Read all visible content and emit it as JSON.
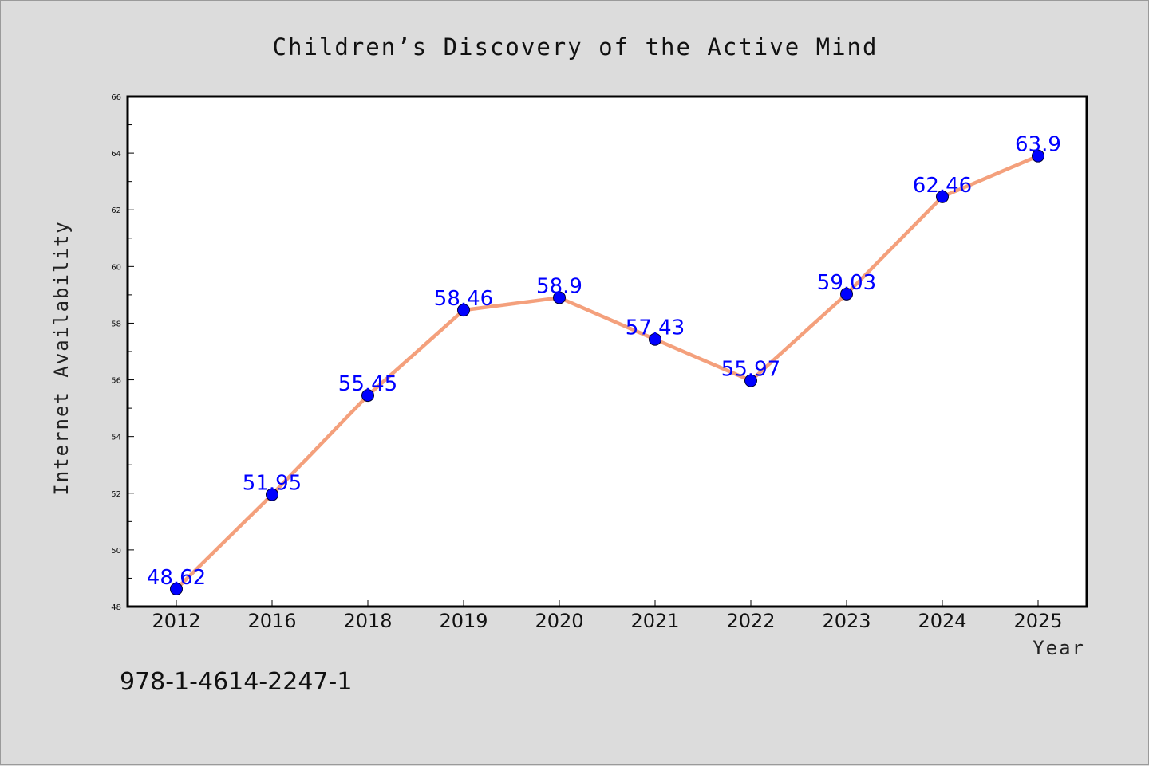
{
  "chart_data": {
    "type": "line",
    "title": "Children’s Discovery of the Active Mind",
    "xlabel": "Year",
    "ylabel": "Internet Availability",
    "categories": [
      "2012",
      "2016",
      "2018",
      "2019",
      "2020",
      "2021",
      "2022",
      "2023",
      "2024",
      "2025"
    ],
    "series": [
      {
        "name": "",
        "values": [
          48.62,
          51.95,
          55.45,
          58.46,
          58.9,
          57.43,
          55.97,
          59.03,
          62.46,
          63.9
        ],
        "labels": [
          "48.62",
          "51.95",
          "55.45",
          "58.46",
          "58.9",
          "57.43",
          "55.97",
          "59.03",
          "62.46",
          "63.9"
        ]
      }
    ],
    "ylim": [
      48,
      66
    ],
    "yticks": [
      48,
      50,
      52,
      54,
      56,
      58,
      60,
      62,
      64,
      66
    ],
    "grid": false,
    "legend": "none",
    "colors": {
      "line": "#f4a07c",
      "marker": "#0000ff",
      "data_label": "#0000ff",
      "background": "#dcdcdc",
      "plot_area": "#ffffff"
    }
  },
  "footer": {
    "isbn": "978-1-4614-2247-1"
  }
}
